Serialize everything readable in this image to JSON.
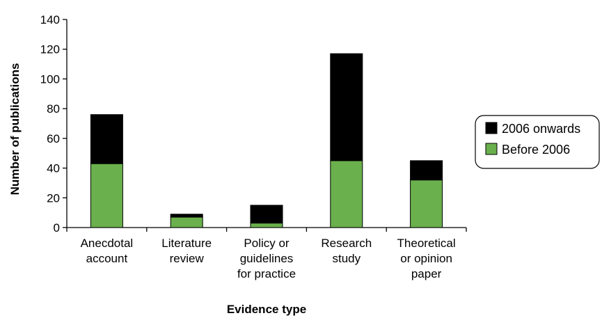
{
  "chart_data": {
    "type": "bar",
    "stacked": true,
    "categories": [
      [
        "Anecdotal",
        "account"
      ],
      [
        "Literature",
        "review"
      ],
      [
        "Policy or",
        "guidelines",
        "for practice"
      ],
      [
        "Research",
        "study"
      ],
      [
        "Theoretical",
        "or opinion",
        "paper"
      ]
    ],
    "series": [
      {
        "name": "Before 2006",
        "color": "#6ab04c",
        "values": [
          43,
          7,
          3,
          45,
          32
        ]
      },
      {
        "name": "2006 onwards",
        "color": "#000000",
        "values": [
          33,
          2,
          12,
          72,
          13
        ]
      }
    ],
    "xlabel": "Evidence type",
    "ylabel": "Number of publications",
    "ylim": [
      0,
      140
    ],
    "yticks": [
      0,
      20,
      40,
      60,
      80,
      100,
      120,
      140
    ],
    "grid": false,
    "legend": {
      "position": "right",
      "entries": [
        "2006 onwards",
        "Before 2006"
      ]
    }
  }
}
